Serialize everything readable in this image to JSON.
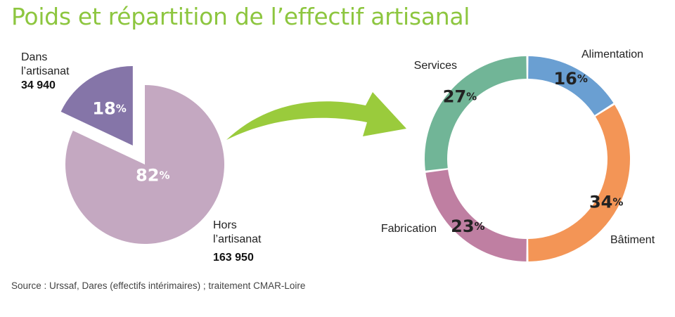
{
  "title": "Poids et répartition de l’effectif artisanal",
  "source": "Source : Urssaf, Dares (effectifs intérimaires) ; traitement CMAR-Loire",
  "chart_data": [
    {
      "type": "pie",
      "slices": [
        {
          "label_lines": [
            "Dans",
            "l’artisanat"
          ],
          "count": "34 940",
          "value": 18,
          "color": "#8575a8"
        },
        {
          "label_lines": [
            "Hors",
            "l’artisanat"
          ],
          "count": "163 950",
          "value": 82,
          "color": "#c4a8c1"
        }
      ]
    },
    {
      "type": "donut",
      "slices": [
        {
          "label": "Alimentation",
          "value": 16,
          "color": "#6a9fd2"
        },
        {
          "label": "Bâtiment",
          "value": 34,
          "color": "#f39556"
        },
        {
          "label": "Fabrication",
          "value": 23,
          "color": "#bf7fa2"
        },
        {
          "label": "Services",
          "value": 27,
          "color": "#71b597"
        }
      ]
    }
  ],
  "pct_symbol": "%",
  "arrow_color": "#9acb3c"
}
